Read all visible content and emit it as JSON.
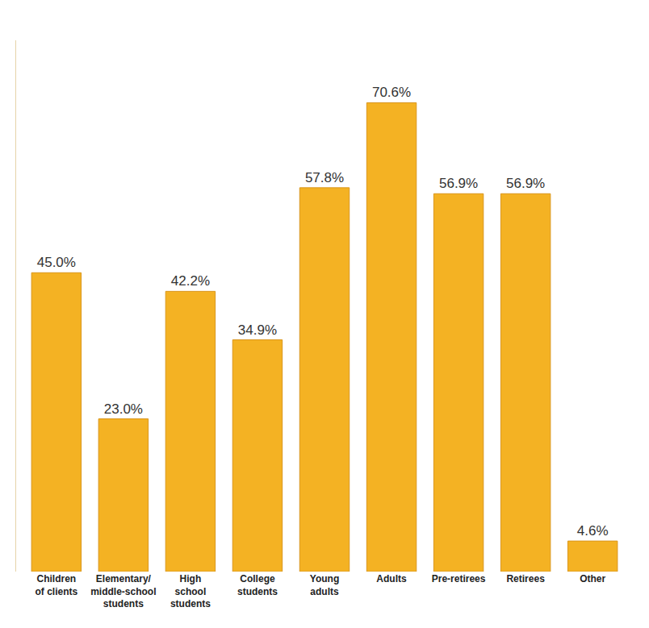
{
  "chart_data": {
    "type": "bar",
    "categories": [
      "Children of clients",
      "Elementary/ middle-school students",
      "High school students",
      "College students",
      "Young adults",
      "Adults",
      "Pre-retirees",
      "Retirees",
      "Other"
    ],
    "values": [
      45.0,
      23.0,
      42.2,
      34.9,
      57.8,
      70.6,
      56.9,
      56.9,
      4.6
    ],
    "value_labels": [
      "45.0%",
      "23.0%",
      "42.2%",
      "34.9%",
      "57.8%",
      "70.6%",
      "56.9%",
      "56.9%",
      "4.6%"
    ],
    "color": "#F4B223",
    "ylim": [
      0,
      80
    ],
    "grid": false,
    "data_labels": true,
    "tick_labels": "x"
  }
}
